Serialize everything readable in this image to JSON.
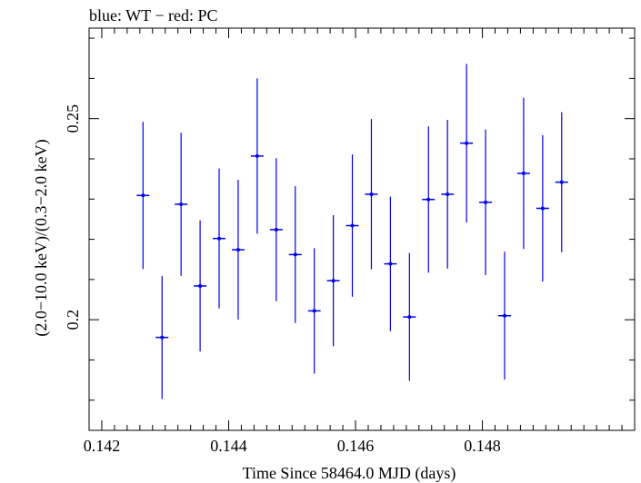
{
  "chart_data": {
    "type": "scatter",
    "title": "blue: WT − red: PC",
    "xlabel": "Time Since 58464.0 MJD (days)",
    "ylabel": "(2.0−10.0 keV)/(0.3−2.0 keV)",
    "xlim": [
      0.1418,
      0.1504
    ],
    "ylim": [
      0.1725,
      0.2725
    ],
    "x_ticks": [
      0.142,
      0.144,
      0.146,
      0.148
    ],
    "x_tick_labels": [
      "0.142",
      "0.144",
      "0.146",
      "0.148"
    ],
    "y_ticks": [
      0.2,
      0.25
    ],
    "y_tick_labels": [
      "0.2",
      "0.25"
    ],
    "series": [
      {
        "color": "#0000ee",
        "x": [
          0.14265,
          0.14295,
          0.14325,
          0.14355,
          0.14385,
          0.14415,
          0.14445,
          0.14475,
          0.14505,
          0.14535,
          0.14565,
          0.14595,
          0.14625,
          0.14655,
          0.14685,
          0.14715,
          0.14745,
          0.14775,
          0.14805,
          0.14835,
          0.14865,
          0.14895,
          0.14925
        ],
        "xerr": [
          0.0001,
          0.0001,
          0.0001,
          0.0001,
          0.0001,
          0.0001,
          0.0001,
          0.0001,
          0.0001,
          0.0001,
          0.0001,
          0.0001,
          0.0001,
          0.0001,
          0.0001,
          0.0001,
          0.0001,
          0.0001,
          0.0001,
          0.0001,
          0.0001,
          0.0001,
          0.0001
        ],
        "y": [
          0.2309,
          0.1956,
          0.2287,
          0.2084,
          0.2202,
          0.2174,
          0.2407,
          0.2224,
          0.2162,
          0.2022,
          0.2097,
          0.2234,
          0.2312,
          0.2139,
          0.2007,
          0.2299,
          0.2312,
          0.2439,
          0.2292,
          0.201,
          0.2364,
          0.2277,
          0.2342
        ],
        "yerr": [
          0.0183,
          0.0153,
          0.0178,
          0.0163,
          0.0174,
          0.0174,
          0.0193,
          0.0178,
          0.017,
          0.0156,
          0.0163,
          0.0177,
          0.0187,
          0.0167,
          0.0159,
          0.0182,
          0.0185,
          0.0197,
          0.0181,
          0.0159,
          0.0188,
          0.0182,
          0.0174
        ]
      }
    ],
    "grid": false
  }
}
